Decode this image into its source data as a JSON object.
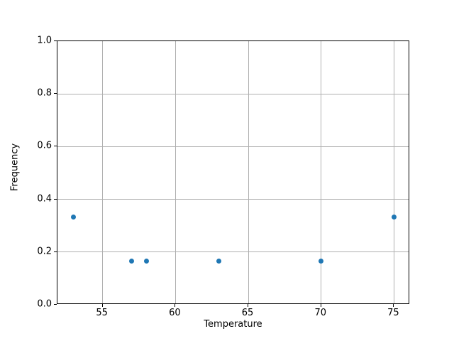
{
  "chart_data": {
    "type": "scatter",
    "title": "",
    "xlabel": "Temperature",
    "ylabel": "Frequency",
    "x": [
      53,
      57,
      58,
      63,
      70,
      75
    ],
    "y": [
      0.333,
      0.167,
      0.167,
      0.167,
      0.167,
      0.333
    ],
    "xlim": [
      51.9,
      76.1
    ],
    "ylim": [
      0.0,
      1.0
    ],
    "xticks": [
      55,
      60,
      65,
      70,
      75
    ],
    "yticks": [
      0.0,
      0.2,
      0.4,
      0.6,
      0.8,
      1.0
    ],
    "grid": true,
    "legend_visible": false,
    "marker_color": "#1f77b4",
    "grid_color": "#b0b0b0",
    "spine_color": "#000000",
    "background_color": "#ffffff"
  }
}
